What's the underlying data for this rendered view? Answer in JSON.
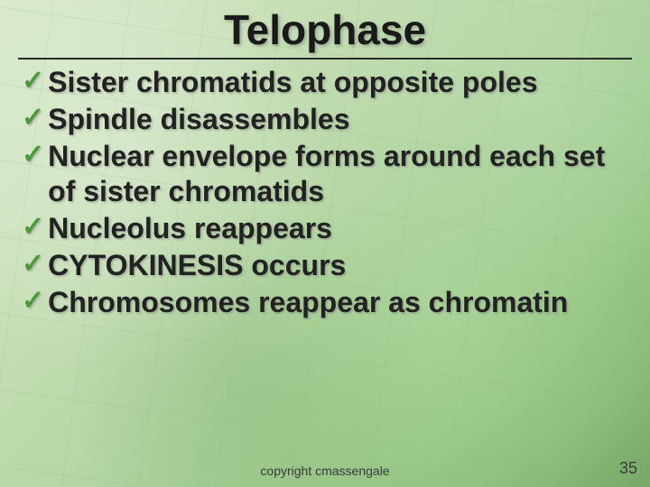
{
  "title": {
    "text": "Telophase",
    "fontsize": 46
  },
  "divider_color": "#2a2a2a",
  "check_glyph": "✓",
  "check_color": "#4a9a38",
  "bullet_style": {
    "fontsize": 32,
    "line_height": 1.22,
    "check_fontsize": 30
  },
  "bullets": [
    {
      "text": "Sister chromatids at opposite poles"
    },
    {
      "text": "Spindle disassembles"
    },
    {
      "text": "Nuclear envelope forms around each set of sister chromatids"
    },
    {
      "text": "Nucleolus reappears"
    },
    {
      "text": "CYTOKINESIS occurs"
    },
    {
      "text": "Chromosomes reappear as chromatin"
    }
  ],
  "footer": {
    "copyright": "copyright cmassengale",
    "copyright_fontsize": 14,
    "page_number": "35",
    "page_fontsize": 18
  },
  "background": {
    "gradient_colors": [
      "#d8e8c8",
      "#88b878"
    ],
    "cell_line_color": "rgba(140,180,120,0.12)"
  }
}
